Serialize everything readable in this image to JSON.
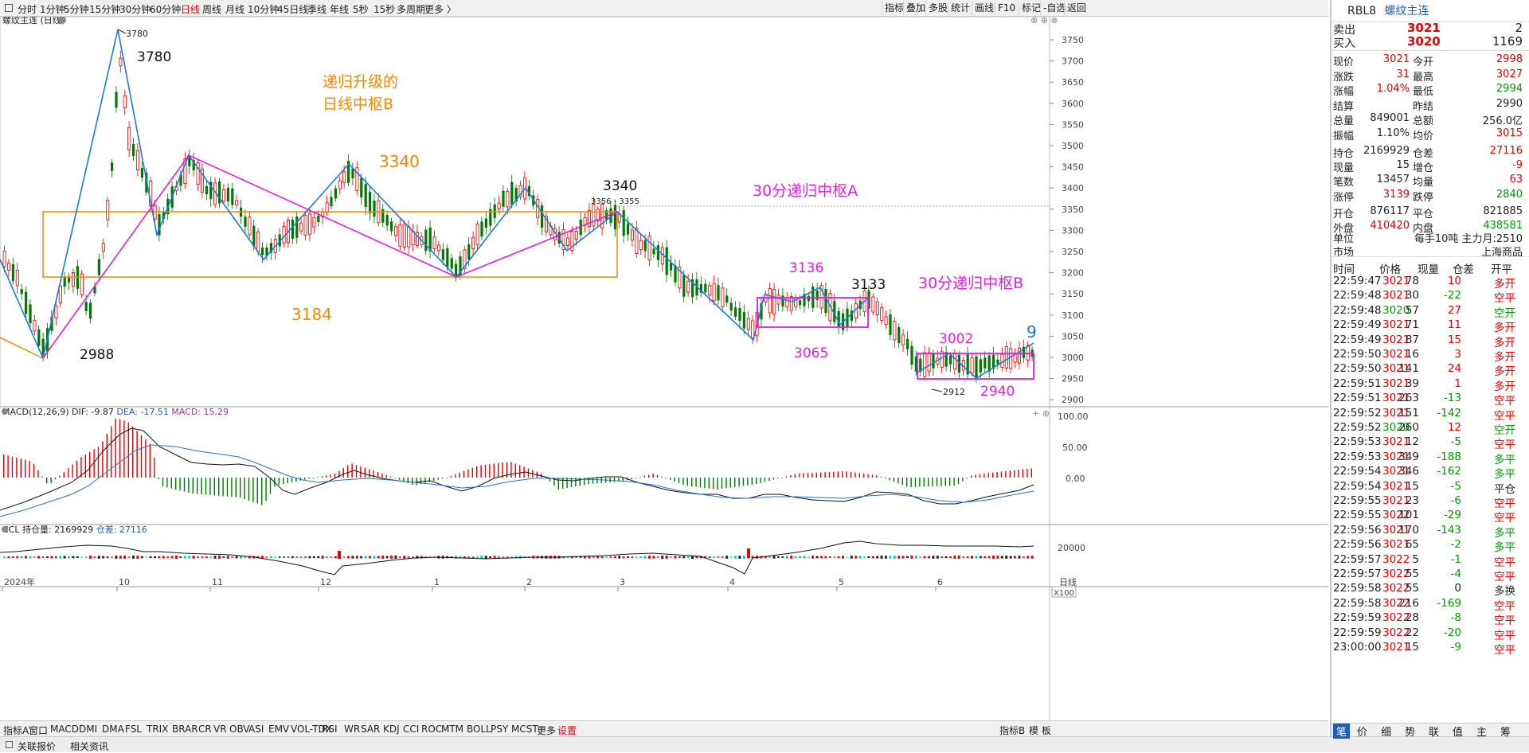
{
  "topbar": {
    "period_tabs": [
      "分时",
      "1分钟",
      "5分钟",
      "15分钟",
      "30分钟",
      "60分钟",
      "日线",
      "周线",
      "月线",
      "10分钟",
      "45日线",
      "季线",
      "年线",
      "5秒",
      "15秒",
      "多周期",
      "更多 〉"
    ],
    "active_tab": "日线",
    "right_tabs": [
      "指标",
      "叠加",
      "多股",
      "统计",
      "画线",
      "F10",
      "标记",
      "-自选",
      "返回"
    ]
  },
  "chart_title": "螺纹主连 (日线)",
  "price_axis_ticks": [
    "3750",
    "3700",
    "3650",
    "3600",
    "3550",
    "3500",
    "3450",
    "3400",
    "3350",
    "3300",
    "3250",
    "3200",
    "3150",
    "3100",
    "3050",
    "3000",
    "2950",
    "2900"
  ],
  "annotations": {
    "peak_small": "3780",
    "peak_big": "3780",
    "low_2988": "2988",
    "title_line1": "递归升级的",
    "title_line2": "日线中枢B",
    "zg_3340_orange": "3340",
    "zd_3184": "3184",
    "high_3340": "3340",
    "range_3356": "3356 - 3355",
    "label_30a": "30分递归中枢A",
    "label_3136": "3136",
    "label_3133": "3133",
    "label_3065": "3065",
    "label_30b": "30分递归中枢B",
    "label_3002": "3002",
    "label_9": "9",
    "label_2912": "2912",
    "label_2940": "2940"
  },
  "macd": {
    "title": "MACD(12,26,9)",
    "dif": "DIF: -9.87",
    "dea": "DEA: -17.51",
    "macd": "MACD: 15.29",
    "ticks": [
      "100.00",
      "50.00",
      "0.00"
    ]
  },
  "ccl": {
    "title": "CCL",
    "oi": "持仓量: 2169929",
    "change": "仓差: 27116",
    "tick": "20000",
    "scale": "X100"
  },
  "x_axis": {
    "labels": [
      "2024年",
      "10",
      "11",
      "12",
      "1",
      "2",
      "3",
      "4",
      "5",
      "6"
    ],
    "period": "日线"
  },
  "bottom_tabs": [
    "指标A",
    "窗口",
    "MACD",
    "DMI",
    "DMA",
    "FSL",
    "TRIX",
    "BRAR",
    "CR",
    "VR",
    "OBV",
    "ASI",
    "EMV",
    "VOL-TDX",
    "RSI",
    "WR",
    "SAR",
    "KDJ",
    "CCI",
    "ROC",
    "MTM",
    "BOLL",
    "PSY",
    "MCST",
    "更多",
    "设置"
  ],
  "bottom_right_tabs": [
    "指标B",
    "模 板"
  ],
  "status_tabs": [
    "关联报价",
    "相关资讯"
  ],
  "quote": {
    "code": "RBL8",
    "name": "螺纹主连",
    "sell_label": "卖出",
    "sell_price": "3021",
    "sell_vol": "2",
    "buy_label": "买入",
    "buy_price": "3020",
    "buy_vol": "1169",
    "fields": [
      [
        "现价",
        "3021",
        "今开",
        "2998"
      ],
      [
        "涨跌",
        "31",
        "最高",
        "3027"
      ],
      [
        "涨幅",
        "1.04%",
        "最低",
        "2994"
      ],
      [
        "结算",
        "",
        "昨结",
        "2990"
      ],
      [
        "总量",
        "849001",
        "总额",
        "256.0亿"
      ],
      [
        "振幅",
        "1.10%",
        "均价",
        "3015"
      ],
      [
        "持仓",
        "2169929",
        "仓差",
        "27116"
      ],
      [
        "现量",
        "15",
        "增仓",
        "-9"
      ],
      [
        "笔数",
        "13457",
        "均量",
        "63"
      ],
      [
        "涨停",
        "3139",
        "跌停",
        "2840"
      ],
      [
        "开仓",
        "876117",
        "平仓",
        "821885"
      ],
      [
        "外盘",
        "410420",
        "内盘",
        "438581"
      ]
    ],
    "unit_label": "单位",
    "unit_value": "每手10吨  主力月:2510",
    "market_label": "市场",
    "market_value": "上海商品"
  },
  "ticks_header": [
    "时间",
    "价格",
    "现量",
    "仓差",
    "开平"
  ],
  "ticks": [
    [
      "22:59:47",
      "3021",
      "78",
      "10",
      "多开"
    ],
    [
      "22:59:48",
      "3021",
      "30",
      "-22",
      "空平"
    ],
    [
      "22:59:48",
      "3020",
      "57",
      "27",
      "空开"
    ],
    [
      "22:59:49",
      "3021",
      "71",
      "11",
      "多开"
    ],
    [
      "22:59:49",
      "3021",
      "87",
      "15",
      "多开"
    ],
    [
      "22:59:50",
      "3021",
      "16",
      "3",
      "多开"
    ],
    [
      "22:59:50",
      "3021",
      "141",
      "24",
      "多开"
    ],
    [
      "22:59:51",
      "3021",
      "39",
      "1",
      "多开"
    ],
    [
      "22:59:51",
      "3021",
      "263",
      "-13",
      "空平"
    ],
    [
      "22:59:52",
      "3021",
      "151",
      "-142",
      "空平"
    ],
    [
      "22:59:52",
      "3020",
      "260",
      "12",
      "空开"
    ],
    [
      "22:59:53",
      "3021",
      "12",
      "-5",
      "空平"
    ],
    [
      "22:59:53",
      "3021",
      "349",
      "-188",
      "多平"
    ],
    [
      "22:59:54",
      "3021",
      "346",
      "-162",
      "多平"
    ],
    [
      "22:59:54",
      "3021",
      "15",
      "-5",
      "平仓"
    ],
    [
      "22:59:55",
      "3021",
      "23",
      "-6",
      "空平"
    ],
    [
      "22:59:55",
      "3022",
      "101",
      "-29",
      "空平"
    ],
    [
      "22:59:56",
      "3021",
      "170",
      "-143",
      "多平"
    ],
    [
      "22:59:56",
      "3021",
      "65",
      "-2",
      "多平"
    ],
    [
      "22:59:57",
      "3022",
      "5",
      "-1",
      "空平"
    ],
    [
      "22:59:57",
      "3022",
      "55",
      "-4",
      "空平"
    ],
    [
      "22:59:58",
      "3022",
      "55",
      "0",
      "多换"
    ],
    [
      "22:59:58",
      "3022",
      "216",
      "-169",
      "空平"
    ],
    [
      "22:59:59",
      "3022",
      "28",
      "-8",
      "空平"
    ],
    [
      "22:59:59",
      "3022",
      "22",
      "-20",
      "空平"
    ],
    [
      "23:00:00",
      "3021",
      "15",
      "-9",
      "空平"
    ]
  ],
  "right_tabs": [
    "笔",
    "价",
    "细",
    "势",
    "联",
    "值",
    "主",
    "筹"
  ],
  "colors": {
    "up": "#e00000",
    "down": "#008000",
    "blue": "#1e7ad6",
    "magenta": "#e020e0",
    "orange": "#ee8a00"
  }
}
